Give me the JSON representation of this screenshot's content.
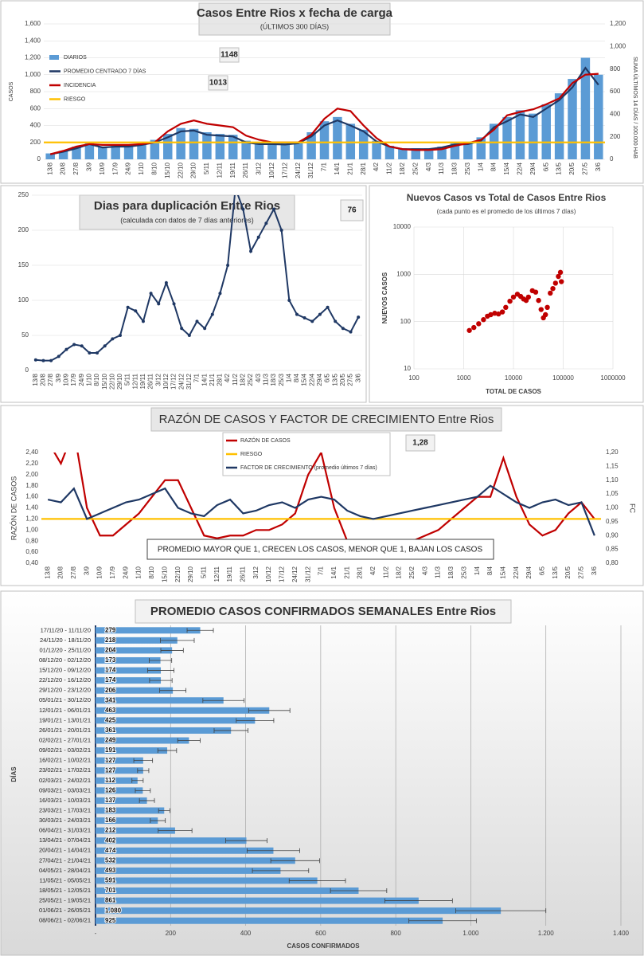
{
  "chart_data": [
    {
      "type": "combo",
      "title": "Casos Entre Rios x fecha de carga",
      "subtitle": "(ÚLTIMOS 300 DÍAS)",
      "y_label": "CASOS",
      "y2_label": "SUMA  ÚLTIMOS 14 DÍAS / 100.000 HAB",
      "annotations": [
        "1148",
        "1013"
      ],
      "grid": true,
      "categories": [
        "13/8",
        "20/8",
        "27/8",
        "3/9",
        "10/9",
        "17/9",
        "24/9",
        "1/10",
        "8/10",
        "15/10",
        "22/10",
        "29/10",
        "5/11",
        "12/11",
        "19/11",
        "26/11",
        "3/12",
        "10/12",
        "17/12",
        "24/12",
        "31/12",
        "7/1",
        "14/1",
        "21/1",
        "28/1",
        "4/2",
        "11/2",
        "18/2",
        "25/2",
        "4/3",
        "11/3",
        "18/3",
        "25/3",
        "1/4",
        "8/4",
        "15/4",
        "22/4",
        "29/4",
        "6/5",
        "13/5",
        "20/5",
        "27/5",
        "3/6"
      ],
      "ylim": [
        0,
        1600
      ],
      "yticks": [
        0,
        200,
        400,
        600,
        800,
        {
          "value": 1000,
          "label": "1,000"
        },
        {
          "value": 1200,
          "label": "1,200"
        },
        {
          "value": 1400,
          "label": "1,400"
        },
        {
          "value": 1600,
          "label": "1,600"
        }
      ],
      "y2lim": [
        0,
        1200
      ],
      "y2ticks": [
        0,
        200,
        400,
        600,
        800,
        {
          "value": 1000,
          "label": "1,000"
        },
        {
          "value": 1200,
          "label": "1,200"
        }
      ],
      "series": [
        {
          "name": "DIARIOS",
          "kind": "bar",
          "color": "#5b9bd5",
          "values": [
            70,
            100,
            150,
            190,
            150,
            160,
            170,
            180,
            230,
            300,
            370,
            360,
            320,
            300,
            290,
            220,
            190,
            200,
            190,
            210,
            320,
            450,
            500,
            420,
            350,
            220,
            160,
            130,
            130,
            130,
            150,
            190,
            200,
            260,
            420,
            500,
            580,
            540,
            650,
            780,
            950,
            1200,
            1000
          ]
        },
        {
          "name": "PROMEDIO CENTRADO 7 DÍAS",
          "kind": "line",
          "color": "#1f3864",
          "values": [
            60,
            90,
            130,
            180,
            140,
            150,
            150,
            170,
            200,
            260,
            330,
            340,
            290,
            280,
            270,
            200,
            180,
            180,
            175,
            190,
            270,
            400,
            460,
            400,
            330,
            210,
            150,
            120,
            120,
            120,
            140,
            175,
            180,
            220,
            380,
            450,
            530,
            500,
            600,
            700,
            850,
            1080,
            880
          ]
        },
        {
          "name": "INCIDENCIA",
          "kind": "line",
          "axis": "y2",
          "color": "#c00000",
          "values": [
            45,
            75,
            113,
            135,
            128,
            128,
            128,
            135,
            150,
            248,
            315,
            345,
            315,
            300,
            285,
            210,
            173,
            150,
            150,
            150,
            218,
            360,
            450,
            428,
            300,
            188,
            113,
            90,
            83,
            83,
            90,
            120,
            143,
            173,
            263,
            390,
            420,
            443,
            488,
            540,
            675,
            750,
            758
          ]
        },
        {
          "name": "RIESGO",
          "kind": "level",
          "axis": "y2",
          "color": "#ffc000",
          "value": 150
        }
      ]
    },
    {
      "type": "line",
      "title": "Dias para duplicación Entre Rios",
      "subtitle": "(calculada con datos de 7 días anteriores)",
      "annotations": [
        "76"
      ],
      "grid": true,
      "color": "#1f3864",
      "categories": [
        "13/8",
        "20/8",
        "27/8",
        "3/9",
        "10/9",
        "17/9",
        "24/9",
        "1/10",
        "8/10",
        "15/10",
        "22/10",
        "29/10",
        "5/11",
        "12/11",
        "19/11",
        "26/11",
        "3/12",
        "10/12",
        "17/12",
        "24/12",
        "31/12",
        "7/1",
        "14/1",
        "21/1",
        "28/1",
        "4/2",
        "11/2",
        "18/2",
        "25/2",
        "4/3",
        "11/3",
        "18/3",
        "25/3",
        "1/4",
        "8/4",
        "15/4",
        "22/4",
        "29/4",
        "6/5",
        "13/5",
        "20/5",
        "27/5",
        "3/6"
      ],
      "values": [
        15,
        14,
        14,
        20,
        30,
        37,
        35,
        25,
        25,
        35,
        45,
        50,
        90,
        85,
        70,
        110,
        95,
        125,
        95,
        60,
        50,
        70,
        60,
        80,
        110,
        150,
        260,
        230,
        170,
        190,
        210,
        230,
        200,
        100,
        80,
        75,
        70,
        80,
        90,
        70,
        60,
        55,
        76
      ],
      "ylim": [
        0,
        250
      ],
      "yticks": [
        0,
        50,
        100,
        150,
        200,
        250
      ]
    },
    {
      "type": "scatter",
      "title": "Nuevos Casos vs Total de Casos Entre Rios",
      "subtitle": "(cada punto es el promedio de los últimos 7 días)",
      "x_label": "TOTAL DE CASOS",
      "y_label": "NUEVOS CASOS",
      "log_x": true,
      "log_y": true,
      "grid": true,
      "color": "#c00000",
      "x": [
        1300,
        1600,
        2000,
        2500,
        3000,
        3500,
        4200,
        5000,
        6000,
        7000,
        8500,
        10000,
        12000,
        14000,
        16000,
        18000,
        20000,
        24000,
        28000,
        32000,
        36000,
        40000,
        44000,
        48000,
        55000,
        62000,
        70000,
        80000,
        88000,
        92000
      ],
      "values": [
        65,
        75,
        90,
        110,
        130,
        140,
        150,
        145,
        160,
        200,
        270,
        330,
        380,
        340,
        300,
        280,
        330,
        450,
        420,
        280,
        180,
        120,
        140,
        200,
        400,
        500,
        650,
        900,
        1100,
        700
      ],
      "xlim": [
        100,
        1000000
      ],
      "xticks": [
        100,
        1000,
        10000,
        100000,
        1000000
      ],
      "ylim": [
        10,
        10000
      ],
      "yticks": [
        10,
        100,
        1000,
        10000
      ]
    },
    {
      "type": "line",
      "title": "RAZÓN DE CASOS Y FACTOR DE CRECIMIENTO Entre Rios",
      "y_label": "RAZÓN DE CASOS",
      "y2_label": "FC",
      "annotations": [
        "1,28"
      ],
      "note": "PROMEDIO MAYOR QUE 1, CRECEN LOS CASOS, MENOR QUE 1, BAJAN LOS CASOS",
      "categories": [
        "13/8",
        "20/8",
        "27/8",
        "3/9",
        "10/9",
        "17/9",
        "24/9",
        "1/10",
        "8/10",
        "15/10",
        "22/10",
        "29/10",
        "5/11",
        "12/11",
        "19/11",
        "26/11",
        "3/12",
        "10/12",
        "17/12",
        "24/12",
        "31/12",
        "7/1",
        "14/1",
        "21/1",
        "28/1",
        "4/2",
        "11/2",
        "18/2",
        "25/2",
        "4/3",
        "11/3",
        "18/3",
        "25/3",
        "1/4",
        "8/4",
        "15/4",
        "22/4",
        "29/4",
        "6/5",
        "13/5",
        "20/5",
        "27/5",
        "3/6"
      ],
      "ylim": [
        0.4,
        2.4
      ],
      "yticks": [
        {
          "value": 0.4,
          "label": "0,40"
        },
        {
          "value": 0.6,
          "label": "0,60"
        },
        {
          "value": 0.8,
          "label": "0,80"
        },
        {
          "value": 1.0,
          "label": "1,00"
        },
        {
          "value": 1.2,
          "label": "1,20"
        },
        {
          "value": 1.4,
          "label": "1,40"
        },
        {
          "value": 1.6,
          "label": "1,60"
        },
        {
          "value": 1.8,
          "label": "1,80"
        },
        {
          "value": 2.0,
          "label": "2,00"
        },
        {
          "value": 2.2,
          "label": "2,20"
        },
        {
          "value": 2.4,
          "label": "2,40"
        }
      ],
      "y2lim": [
        0.8,
        1.2
      ],
      "y2ticks": [
        {
          "value": 0.8,
          "label": "0,80"
        },
        {
          "value": 0.85,
          "label": "0,85"
        },
        {
          "value": 0.9,
          "label": "0,90"
        },
        {
          "value": 0.95,
          "label": "0,95"
        },
        {
          "value": 1.0,
          "label": "1,00"
        },
        {
          "value": 1.05,
          "label": "1,05"
        },
        {
          "value": 1.1,
          "label": "1,10"
        },
        {
          "value": 1.15,
          "label": "1,15"
        },
        {
          "value": 1.2,
          "label": "1,20"
        }
      ],
      "series": [
        {
          "name": "RAZÓN DE CASOS",
          "kind": "line",
          "color": "#c00000",
          "values": [
            2.6,
            2.2,
            2.8,
            1.4,
            0.9,
            0.9,
            1.1,
            1.3,
            1.6,
            1.9,
            1.9,
            1.4,
            0.9,
            0.85,
            0.9,
            0.9,
            1.0,
            1.0,
            1.1,
            1.3,
            2.0,
            2.4,
            1.4,
            0.8,
            0.6,
            0.55,
            0.55,
            0.6,
            0.8,
            0.9,
            1.0,
            1.2,
            1.4,
            1.6,
            1.6,
            2.3,
            1.6,
            1.1,
            0.9,
            1.0,
            1.3,
            1.5,
            1.2
          ]
        },
        {
          "name": "RIESGO",
          "kind": "level",
          "color": "#ffc000",
          "value": 1.2
        },
        {
          "name": "FACTOR DE CRECIMIENTO (promedio últimos 7 días)",
          "kind": "line",
          "axis": "y2",
          "color": "#1f3864",
          "values": [
            1.03,
            1.02,
            1.07,
            0.96,
            0.98,
            1.0,
            1.02,
            1.03,
            1.05,
            1.07,
            1.0,
            0.98,
            0.97,
            1.01,
            1.03,
            0.98,
            0.99,
            1.01,
            1.02,
            1.0,
            1.03,
            1.04,
            1.03,
            0.99,
            0.97,
            0.96,
            0.97,
            0.98,
            0.99,
            1.0,
            1.01,
            1.02,
            1.03,
            1.04,
            1.08,
            1.05,
            1.02,
            1.0,
            1.02,
            1.03,
            1.01,
            1.02,
            0.9
          ]
        }
      ]
    },
    {
      "type": "hbar",
      "title": "PROMEDIO CASOS CONFIRMADOS SEMANALES Entre Rios",
      "x_label": "CASOS CONFIRMADOS",
      "y_label": "DÍAS",
      "color": "#5b9bd5",
      "grid": true,
      "categories": [
        "17/11/20 - 11/11/20",
        "24/11/20 - 18/11/20",
        "01/12/20 - 25/11/20",
        "08/12/20 - 02/12/20",
        "15/12/20 - 09/12/20",
        "22/12/20 - 16/12/20",
        "29/12/20 - 23/12/20",
        "05/01/21 - 30/12/20",
        "12/01/21 - 06/01/21",
        "19/01/21 - 13/01/21",
        "26/01/21 - 20/01/21",
        "02/02/21 - 27/01/21",
        "09/02/21 - 03/02/21",
        "16/02/21 - 10/02/21",
        "23/02/21 - 17/02/21",
        "02/03/21 - 24/02/21",
        "09/03/21 - 03/03/21",
        "16/03/21 - 10/03/21",
        "23/03/21 - 17/03/21",
        "30/03/21 - 24/03/21",
        "06/04/21 - 31/03/21",
        "13/04/21 - 07/04/21",
        "20/04/21 - 14/04/21",
        "27/04/21 - 21/04/21",
        "04/05/21 - 28/04/21",
        "11/05/21 - 05/05/21",
        "18/05/21 - 12/05/21",
        "25/05/21 - 19/05/21",
        "01/06/21 - 26/05/21",
        "08/06/21 - 02/06/21"
      ],
      "values": [
        279,
        218,
        204,
        173,
        174,
        174,
        206,
        341,
        463,
        425,
        361,
        249,
        191,
        127,
        127,
        112,
        126,
        137,
        183,
        166,
        212,
        402,
        474,
        532,
        493,
        591,
        701,
        861,
        1080,
        925
      ],
      "value_labels": [
        "279",
        "218",
        "204",
        "173",
        "174",
        "174",
        "206",
        "341",
        "463",
        "425",
        "361",
        "249",
        "191",
        "127",
        "127",
        "112",
        "126",
        "137",
        "183",
        "166",
        "212",
        "402",
        "474",
        "532",
        "493",
        "591",
        "701",
        "861",
        "1.080",
        "925"
      ],
      "errors": [
        35,
        45,
        30,
        30,
        35,
        30,
        35,
        55,
        55,
        50,
        45,
        30,
        25,
        25,
        15,
        15,
        20,
        20,
        15,
        20,
        45,
        55,
        70,
        65,
        75,
        75,
        75,
        90,
        120,
        90
      ],
      "xlim": [
        0,
        1400
      ],
      "xticks": [
        {
          "value": 0,
          "label": "-"
        },
        200,
        400,
        600,
        800,
        {
          "value": 1000,
          "label": "1.000"
        },
        {
          "value": 1200,
          "label": "1.200"
        },
        {
          "value": 1400,
          "label": "1.400"
        }
      ]
    }
  ]
}
